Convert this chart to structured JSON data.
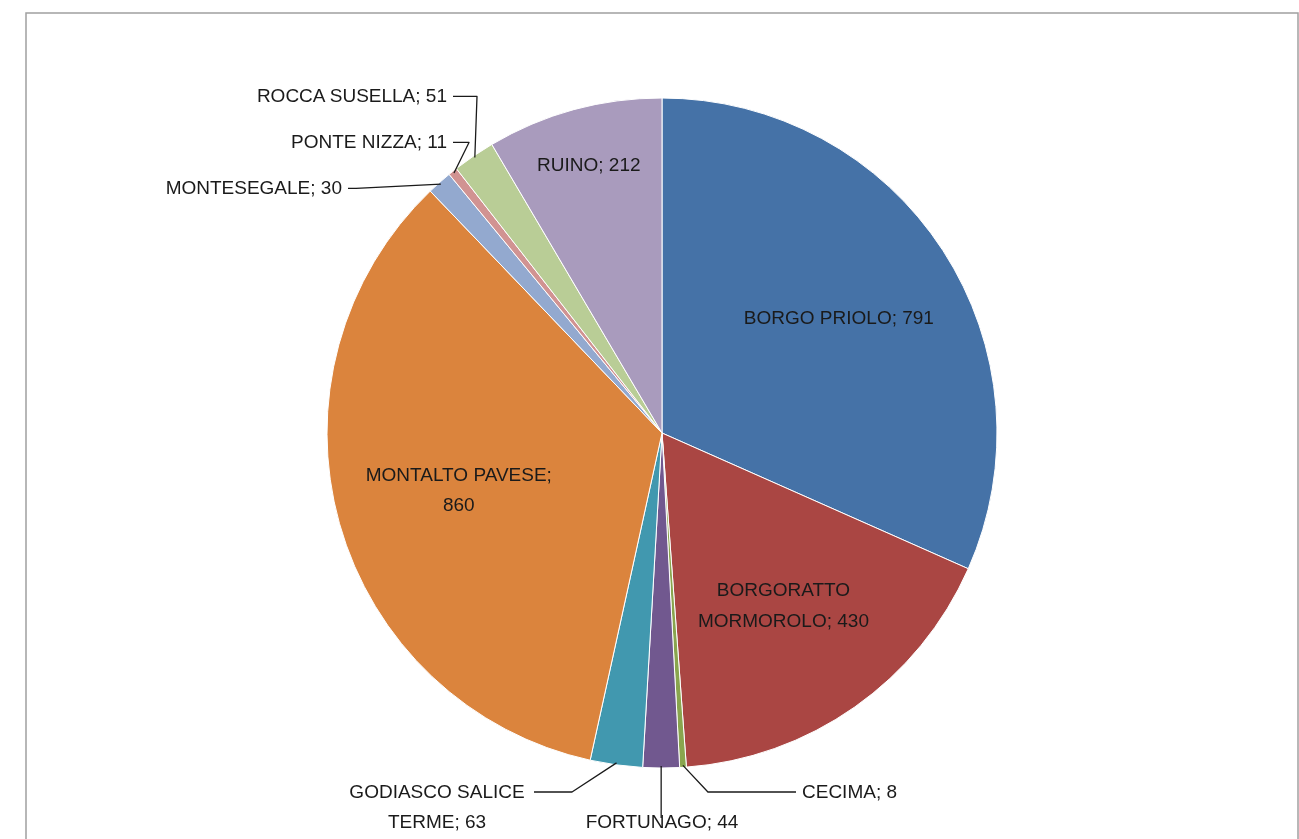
{
  "chart_data": {
    "type": "pie",
    "categories": [
      "BORGO PRIOLO",
      "BORGORATTO MORMOROLO",
      "CECIMA",
      "FORTUNAGO",
      "GODIASCO SALICE TERME",
      "MONTALTO PAVESE",
      "MONTESEGALE",
      "PONTE NIZZA",
      "ROCCA SUSELLA",
      "RUINO"
    ],
    "values": [
      791,
      430,
      8,
      44,
      63,
      860,
      30,
      11,
      51,
      212
    ],
    "value_labels": [
      "; 791",
      "; 430",
      "; 8",
      "; 44",
      "; 63",
      "; 860",
      "; 30",
      "; 11",
      "; 51",
      "; 212"
    ],
    "colors": [
      "#4572a7",
      "#aa4643",
      "#89a54e",
      "#71588f",
      "#4198af",
      "#db843d",
      "#93a9cf",
      "#d19392",
      "#b9cd96",
      "#a99bbd"
    ]
  }
}
